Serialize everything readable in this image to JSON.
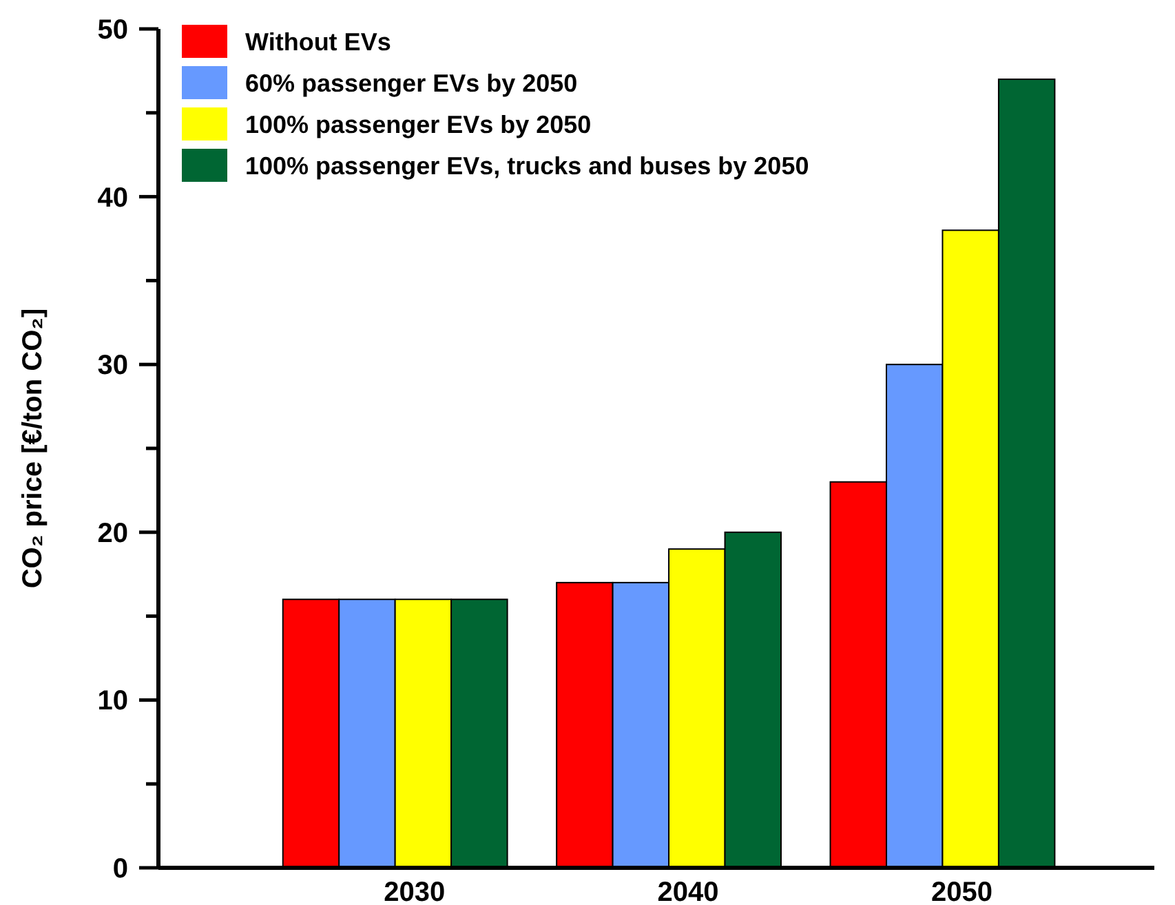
{
  "chart_data": {
    "type": "bar",
    "ylabel": "CO₂ price [€/ton CO₂]",
    "categories": [
      "2030",
      "2040",
      "2050"
    ],
    "series": [
      {
        "name": "Without EVs",
        "color": "#ff0000",
        "values": [
          16,
          17,
          23
        ]
      },
      {
        "name": "60% passenger EVs by 2050",
        "color": "#6699ff",
        "values": [
          16,
          17,
          30
        ]
      },
      {
        "name": "100% passenger EVs by 2050",
        "color": "#ffff00",
        "values": [
          16,
          19,
          38
        ]
      },
      {
        "name": "100% passenger EVs, trucks and buses by 2050",
        "color": "#006633",
        "values": [
          16,
          20,
          47
        ]
      }
    ],
    "ylim": [
      0,
      50
    ],
    "yticks": [
      0,
      {
        "value": 5,
        "label": null
      },
      10,
      {
        "value": 15,
        "label": null
      },
      20,
      {
        "value": 25,
        "label": null
      },
      30,
      {
        "value": 35,
        "label": null
      },
      40,
      {
        "value": 45,
        "label": null
      },
      50
    ],
    "legend": "top left",
    "grid": false
  }
}
